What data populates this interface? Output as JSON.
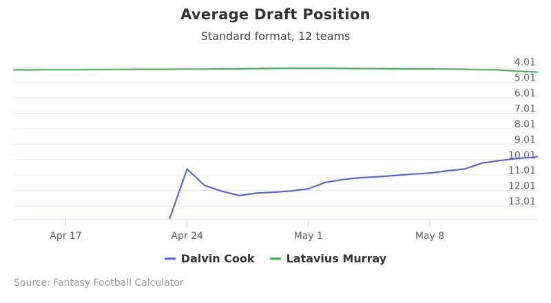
{
  "chart_data": {
    "type": "line",
    "title": "Average Draft Position",
    "subtitle": "Standard format, 12 teams",
    "x_tick_labels": [
      {
        "day": 0,
        "label": "Apr 17"
      },
      {
        "day": 7,
        "label": "Apr 24"
      },
      {
        "day": 14,
        "label": "May 1"
      },
      {
        "day": 21,
        "label": "May 8"
      }
    ],
    "x_range_days_from_apr17": [
      -3,
      27.2
    ],
    "y_ticks": [
      {
        "value": 4.01,
        "label": "4.01"
      },
      {
        "value": 5.01,
        "label": "5.01"
      },
      {
        "value": 6.01,
        "label": "6.01"
      },
      {
        "value": 7.01,
        "label": "7.01"
      },
      {
        "value": 8.01,
        "label": "8.01"
      },
      {
        "value": 9.01,
        "label": "9.01"
      },
      {
        "value": 10.01,
        "label": "10.01"
      },
      {
        "value": 11.01,
        "label": "11.01"
      },
      {
        "value": 12.01,
        "label": "12.01"
      },
      {
        "value": 13.01,
        "label": "13.01"
      }
    ],
    "ylim": [
      3.6,
      13.9
    ],
    "y_reversed": true,
    "grid": true,
    "legend_position": "bottom-center",
    "series": [
      {
        "name": "Dalvin Cook",
        "color": "#5965dc",
        "points": [
          [
            6,
            13.8
          ],
          [
            7,
            10.62
          ],
          [
            8,
            11.68
          ],
          [
            9,
            12.06
          ],
          [
            10,
            12.34
          ],
          [
            11,
            12.18
          ],
          [
            12,
            12.12
          ],
          [
            13,
            12.04
          ],
          [
            14,
            11.9
          ],
          [
            15,
            11.48
          ],
          [
            16,
            11.3
          ],
          [
            17,
            11.18
          ],
          [
            18,
            11.12
          ],
          [
            19,
            11.04
          ],
          [
            20,
            10.95
          ],
          [
            21,
            10.88
          ],
          [
            22,
            10.74
          ],
          [
            23,
            10.62
          ],
          [
            24,
            10.24
          ],
          [
            25,
            10.08
          ],
          [
            26,
            9.94
          ],
          [
            27,
            9.86
          ],
          [
            27.2,
            9.82
          ]
        ]
      },
      {
        "name": "Latavius Murray",
        "color": "#4caf60",
        "points": [
          [
            -3,
            4.2
          ],
          [
            -2,
            4.2
          ],
          [
            -1,
            4.19
          ],
          [
            0,
            4.19
          ],
          [
            1,
            4.19
          ],
          [
            2,
            4.18
          ],
          [
            3,
            4.17
          ],
          [
            4,
            4.16
          ],
          [
            5,
            4.16
          ],
          [
            6,
            4.16
          ],
          [
            7,
            4.15
          ],
          [
            8,
            4.15
          ],
          [
            9,
            4.14
          ],
          [
            10,
            4.13
          ],
          [
            11,
            4.12
          ],
          [
            12,
            4.11
          ],
          [
            13,
            4.1
          ],
          [
            14,
            4.1
          ],
          [
            15,
            4.1
          ],
          [
            16,
            4.11
          ],
          [
            17,
            4.12
          ],
          [
            18,
            4.12
          ],
          [
            19,
            4.13
          ],
          [
            20,
            4.14
          ],
          [
            21,
            4.14
          ],
          [
            22,
            4.15
          ],
          [
            23,
            4.16
          ],
          [
            24,
            4.19
          ],
          [
            25,
            4.2
          ],
          [
            26,
            4.28
          ],
          [
            27,
            4.33
          ],
          [
            27.2,
            4.35
          ]
        ]
      }
    ]
  },
  "source": "Source: Fantasy Football Calculator"
}
